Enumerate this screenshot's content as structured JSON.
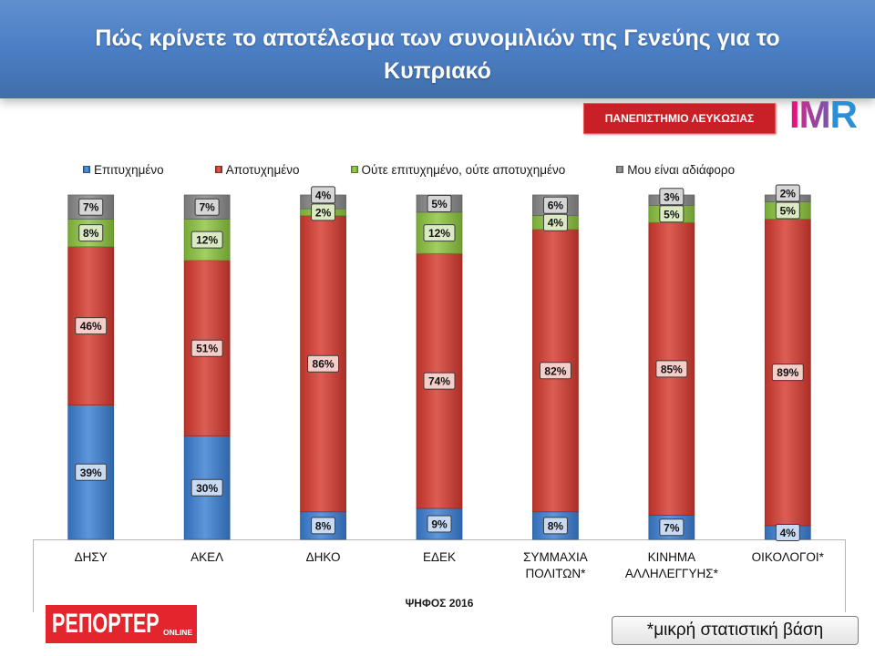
{
  "logos": {
    "university": "ΠΑΝΕΠΙΣΤΗΜΙΟ ΛΕΥΚΩΣΙΑΣ",
    "imr": "IMR",
    "reporter": "ΡΕΠΟΡΤΕΡ",
    "reporter_sub": "ONLINE"
  },
  "colors": {
    "header": "#4c80c6",
    "university_logo": "#c91f26",
    "reporter_logo": "#e3262d"
  },
  "footnote": "*μικρή στατιστική βάση",
  "chart_data": {
    "type": "bar",
    "stacked": true,
    "title": "Πώς κρίνετε το αποτέλεσμα των συνομιλιών της Γενεύης για το Κυπριακό",
    "xlabel": "ΨΗΦΟΣ 2016",
    "ylim": [
      0,
      100
    ],
    "value_suffix": "%",
    "grid": false,
    "legend_position": "top",
    "categories": [
      "ΔΗΣΥ",
      "ΑΚΕΛ",
      "ΔΗΚΟ",
      "ΕΔΕΚ",
      "ΣΥΜΜΑΧΙΑ ΠΟΛΙΤΩΝ*",
      "ΚΙΝΗΜΑ ΑΛΛΗΛΕΓΓΥΗΣ*",
      "ΟΙΚΟΛΟΓΟΙ*"
    ],
    "series": [
      {
        "name": "Επιτυχημένο",
        "color": "#3b7fd4",
        "label_color": "#c9dbf3",
        "values": [
          39,
          30,
          8,
          9,
          8,
          7,
          4
        ]
      },
      {
        "name": "Αποτυχημένο",
        "color": "#d63a2f",
        "label_color": "#f5cdc9",
        "values": [
          46,
          51,
          86,
          74,
          82,
          85,
          89
        ]
      },
      {
        "name": "Ούτε επιτυχημένο, ούτε αποτυχημένο",
        "color": "#8cc43f",
        "label_color": "#dbeac3",
        "values": [
          8,
          12,
          2,
          12,
          4,
          5,
          5
        ]
      },
      {
        "name": "Μου είναι αδιάφορο",
        "color": "#8a8a8a",
        "label_color": "#d6d6d6",
        "values": [
          7,
          7,
          4,
          5,
          6,
          3,
          2
        ]
      }
    ]
  }
}
